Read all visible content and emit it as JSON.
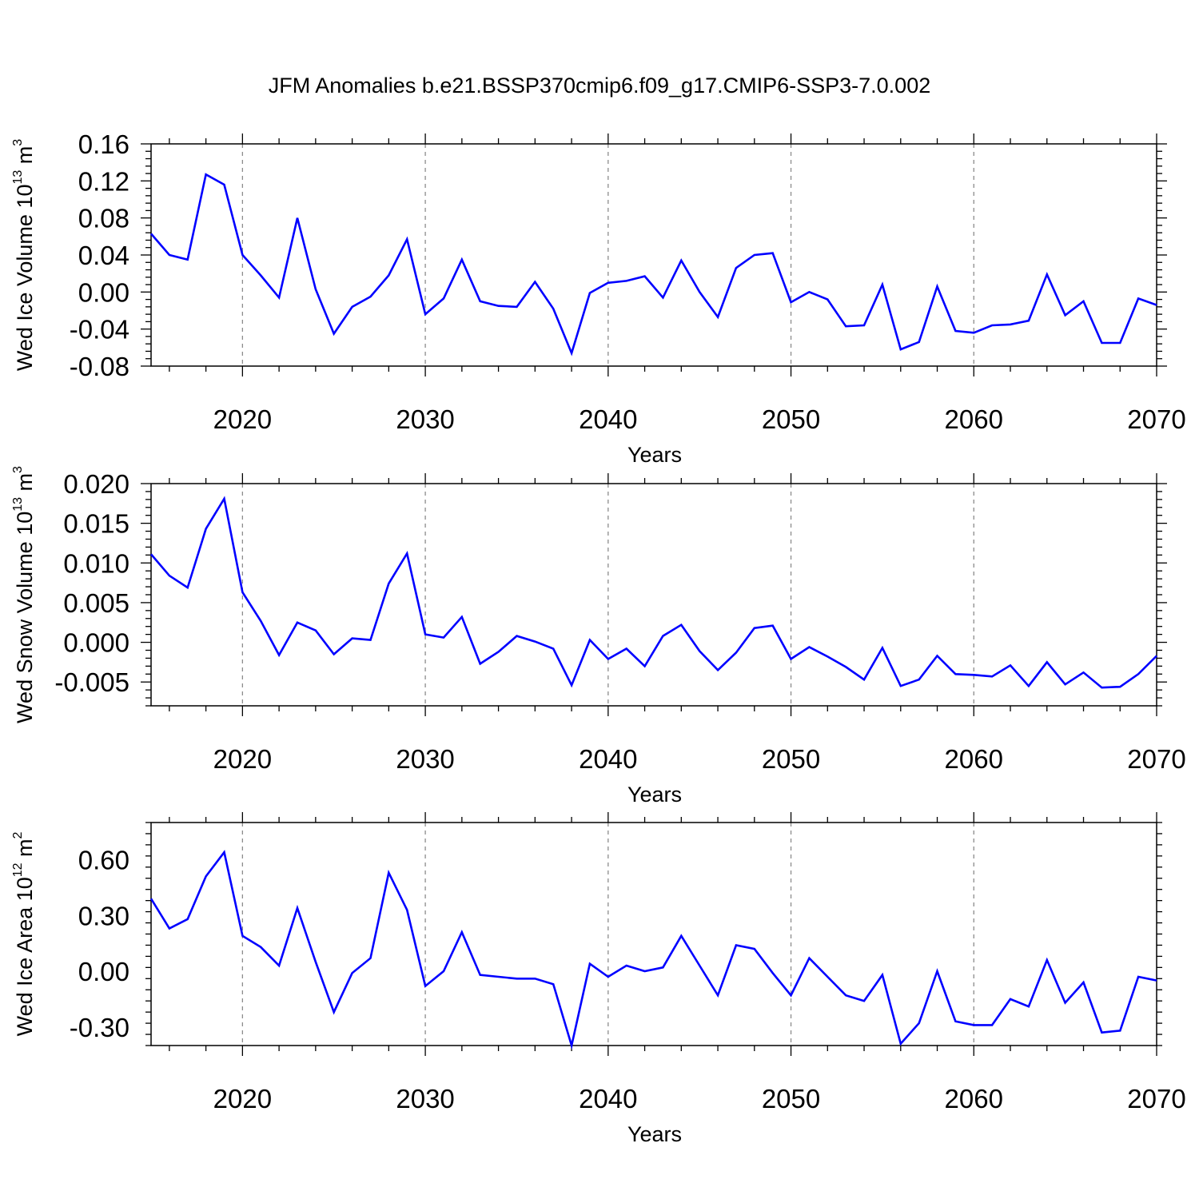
{
  "title": "JFM Anomalies b.e21.BSSP370cmip6.f09_g17.CMIP6-SSP3-7.0.002",
  "line_color": "#0000ff",
  "grid_color": "#8c8c8c",
  "chart_data": [
    {
      "type": "line",
      "title": "",
      "xlabel": "Years",
      "ylabel": {
        "text": "Wed Ice Volume 10",
        "exp": "13",
        "unit": " m",
        "unit_exp": "3"
      },
      "xlim": [
        2015,
        2070
      ],
      "ylim": [
        -0.08,
        0.16
      ],
      "xticks": [
        2020,
        2030,
        2040,
        2050,
        2060,
        2070
      ],
      "yticks": [
        -0.08,
        -0.04,
        0.0,
        0.04,
        0.08,
        0.12,
        0.16
      ],
      "ytick_labels": [
        "-0.08",
        "-0.04",
        "0.00",
        "0.04",
        "0.08",
        "0.12",
        "0.16"
      ],
      "grid": "vertical dashed lines at major x ticks",
      "x": [
        2015,
        2016,
        2017,
        2018,
        2019,
        2020,
        2021,
        2022,
        2023,
        2024,
        2025,
        2026,
        2027,
        2028,
        2029,
        2030,
        2031,
        2032,
        2033,
        2034,
        2035,
        2036,
        2037,
        2038,
        2039,
        2040,
        2041,
        2042,
        2043,
        2044,
        2045,
        2046,
        2047,
        2048,
        2049,
        2050,
        2051,
        2052,
        2053,
        2054,
        2055,
        2056,
        2057,
        2058,
        2059,
        2060,
        2061,
        2062,
        2063,
        2064,
        2065,
        2066,
        2067,
        2068,
        2069,
        2070
      ],
      "y": [
        0.063,
        0.04,
        0.035,
        0.127,
        0.116,
        0.04,
        0.018,
        -0.006,
        0.08,
        0.003,
        -0.045,
        -0.016,
        -0.005,
        0.018,
        0.057,
        -0.024,
        -0.007,
        0.035,
        -0.01,
        -0.015,
        -0.016,
        0.011,
        -0.018,
        -0.066,
        -0.001,
        0.01,
        0.012,
        0.017,
        -0.006,
        0.034,
        0.0,
        -0.027,
        0.026,
        0.04,
        0.042,
        -0.011,
        0.0,
        -0.008,
        -0.037,
        -0.036,
        0.008,
        -0.062,
        -0.054,
        0.006,
        -0.042,
        -0.044,
        -0.036,
        -0.035,
        -0.031,
        0.019,
        -0.025,
        -0.01,
        -0.055,
        -0.055,
        -0.007,
        -0.014
      ]
    },
    {
      "type": "line",
      "title": "",
      "xlabel": "Years",
      "ylabel": {
        "text": "Wed Snow Volume 10",
        "exp": "13",
        "unit": " m",
        "unit_exp": "3"
      },
      "xlim": [
        2015,
        2070
      ],
      "ylim": [
        -0.008,
        0.02
      ],
      "xticks": [
        2020,
        2030,
        2040,
        2050,
        2060,
        2070
      ],
      "yticks": [
        -0.005,
        0.0,
        0.005,
        0.01,
        0.015,
        0.02
      ],
      "ytick_labels": [
        "-0.005",
        "0.000",
        "0.005",
        "0.010",
        "0.015",
        "0.020"
      ],
      "grid": "vertical dashed lines at major x ticks",
      "x": [
        2015,
        2016,
        2017,
        2018,
        2019,
        2020,
        2021,
        2022,
        2023,
        2024,
        2025,
        2026,
        2027,
        2028,
        2029,
        2030,
        2031,
        2032,
        2033,
        2034,
        2035,
        2036,
        2037,
        2038,
        2039,
        2040,
        2041,
        2042,
        2043,
        2044,
        2045,
        2046,
        2047,
        2048,
        2049,
        2050,
        2051,
        2052,
        2053,
        2054,
        2055,
        2056,
        2057,
        2058,
        2059,
        2060,
        2061,
        2062,
        2063,
        2064,
        2065,
        2066,
        2067,
        2068,
        2069,
        2070
      ],
      "y": [
        0.0111,
        0.0084,
        0.0069,
        0.0143,
        0.0181,
        0.0063,
        0.0027,
        -0.0016,
        0.0025,
        0.0015,
        -0.0015,
        0.0005,
        0.0003,
        0.0074,
        0.0112,
        0.001,
        0.0006,
        0.0032,
        -0.0027,
        -0.0012,
        0.0008,
        0.0001,
        -0.0008,
        -0.0054,
        0.0003,
        -0.0021,
        -0.0008,
        -0.003,
        0.0008,
        0.0022,
        -0.0011,
        -0.0035,
        -0.0013,
        0.0018,
        0.0021,
        -0.0021,
        -0.0006,
        -0.0018,
        -0.0031,
        -0.0047,
        -0.0007,
        -0.0055,
        -0.0047,
        -0.0017,
        -0.004,
        -0.0041,
        -0.0043,
        -0.0029,
        -0.0055,
        -0.0025,
        -0.0053,
        -0.0038,
        -0.0057,
        -0.0056,
        -0.004,
        -0.0017
      ]
    },
    {
      "type": "line",
      "title": "",
      "xlabel": "Years",
      "ylabel": {
        "text": "Wed Ice Area 10",
        "exp": "12",
        "unit": " m",
        "unit_exp": "2"
      },
      "xlim": [
        2015,
        2070
      ],
      "ylim": [
        -0.4,
        0.8
      ],
      "xticks": [
        2020,
        2030,
        2040,
        2050,
        2060,
        2070
      ],
      "yticks": [
        -0.3,
        0.0,
        0.3,
        0.6
      ],
      "ytick_labels": [
        "-0.30",
        "0.00",
        "0.30",
        "0.60"
      ],
      "grid": "vertical dashed lines at major x ticks",
      "x": [
        2015,
        2016,
        2017,
        2018,
        2019,
        2020,
        2021,
        2022,
        2023,
        2024,
        2025,
        2026,
        2027,
        2028,
        2029,
        2030,
        2031,
        2032,
        2033,
        2034,
        2035,
        2036,
        2037,
        2038,
        2039,
        2040,
        2041,
        2042,
        2043,
        2044,
        2045,
        2046,
        2047,
        2048,
        2049,
        2050,
        2051,
        2052,
        2053,
        2054,
        2055,
        2056,
        2057,
        2058,
        2059,
        2060,
        2061,
        2062,
        2063,
        2064,
        2065,
        2066,
        2067,
        2068,
        2069,
        2070
      ],
      "y": [
        0.39,
        0.23,
        0.28,
        0.51,
        0.64,
        0.19,
        0.13,
        0.03,
        0.34,
        0.05,
        -0.22,
        -0.01,
        0.07,
        0.53,
        0.33,
        -0.08,
        0.0,
        0.21,
        -0.02,
        -0.03,
        -0.04,
        -0.04,
        -0.07,
        -0.4,
        0.04,
        -0.03,
        0.03,
        0.0,
        0.02,
        0.19,
        0.03,
        -0.13,
        0.14,
        0.12,
        -0.01,
        -0.13,
        0.07,
        -0.03,
        -0.13,
        -0.16,
        -0.02,
        -0.39,
        -0.28,
        0.0,
        -0.27,
        -0.29,
        -0.29,
        -0.15,
        -0.19,
        0.06,
        -0.17,
        -0.06,
        -0.33,
        -0.32,
        -0.03,
        -0.05
      ]
    }
  ]
}
